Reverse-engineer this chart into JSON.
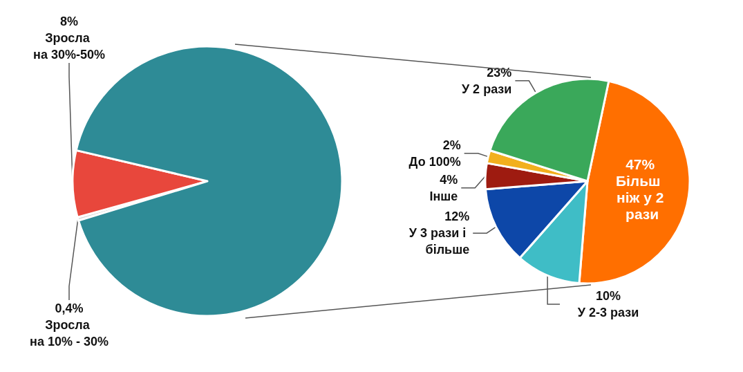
{
  "chart_data": [
    {
      "type": "pie",
      "categories": [
        "Зросла на 10% - 30%",
        "Зросла на 30%-50%",
        null
      ],
      "values": [
        0.4,
        8,
        91.6
      ],
      "colors": [
        "#d9d9d9",
        "#e8473c",
        "#2e8b96"
      ],
      "value_labels": [
        "0,4%",
        "8%",
        null
      ]
    },
    {
      "type": "pie",
      "categories": [
        "Більш ніж у 2 рази",
        "У 2-3 рази",
        "У 3 рази і більше",
        "Інше",
        "До 100%",
        "У 2 рази"
      ],
      "values": [
        47,
        10,
        12,
        4,
        2,
        23
      ],
      "colors": [
        "#ff6f00",
        "#3fbdc6",
        "#0d47a8",
        "#9e1b10",
        "#f2b01e",
        "#3aa85a"
      ],
      "value_labels": [
        "47%",
        "10%",
        "12%",
        "4%",
        "2%",
        "23%"
      ]
    }
  ]
}
